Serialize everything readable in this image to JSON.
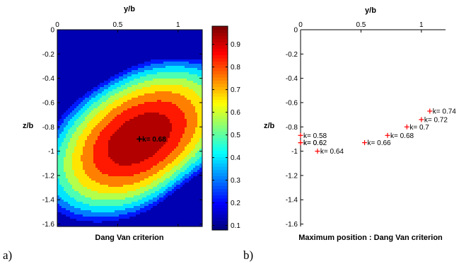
{
  "chart_data": [
    {
      "panel": "a)",
      "type": "heatmap",
      "xlabel": "y/b",
      "ylabel": "z/b",
      "caption": "Dang Van criterion",
      "xlim": [
        0,
        1.2
      ],
      "ylim": [
        -1.62,
        0
      ],
      "x_ticks": [
        "0",
        "0.5",
        "1"
      ],
      "y_ticks": [
        "0",
        "-0.2",
        "-0.4",
        "-0.6",
        "-0.8",
        "-1",
        "-1.2",
        "-1.4",
        "-1.6"
      ],
      "colorbar_ticks": [
        "0.1",
        "0.2",
        "0.3",
        "0.4",
        "0.5",
        "0.6",
        "0.7",
        "0.8",
        "0.9"
      ],
      "colorbar_range": [
        0.08,
        0.98
      ],
      "colormap": [
        "#00008f",
        "#0000ff",
        "#0080ff",
        "#00ffff",
        "#80ff80",
        "#ffff00",
        "#ff8000",
        "#ff0000",
        "#800000"
      ],
      "marker": {
        "label": "k= 0.68",
        "x": 0.68,
        "y": -0.9
      }
    },
    {
      "panel": "b)",
      "type": "scatter",
      "xlabel": "y/b",
      "ylabel": "z/b",
      "caption": "Maximum position : Dang Van criterion",
      "xlim": [
        0,
        1.2
      ],
      "ylim": [
        -1.62,
        0
      ],
      "x_ticks": [
        "0",
        "0.5",
        "1"
      ],
      "y_ticks": [
        "0",
        "-0.2",
        "-0.4",
        "-0.6",
        "-0.8",
        "-1",
        "-1.2",
        "-1.4",
        "-1.6"
      ],
      "marker_color": "#ff0000",
      "points": [
        {
          "label": "k= 0.58",
          "x": 0.0,
          "y": -0.87
        },
        {
          "label": "k= 0.6",
          "x": 0.0,
          "y": -0.93
        },
        {
          "label": "k= 0.62",
          "x": 0.0,
          "y": -0.93
        },
        {
          "label": "k= 0.64",
          "x": 0.14,
          "y": -1.0
        },
        {
          "label": "k= 0.66",
          "x": 0.53,
          "y": -0.93
        },
        {
          "label": "k= 0.68",
          "x": 0.72,
          "y": -0.87
        },
        {
          "label": "k= 0.7",
          "x": 0.88,
          "y": -0.8
        },
        {
          "label": "k= 0.72",
          "x": 1.0,
          "y": -0.74
        },
        {
          "label": "k= 0.74",
          "x": 1.07,
          "y": -0.67
        }
      ]
    }
  ]
}
